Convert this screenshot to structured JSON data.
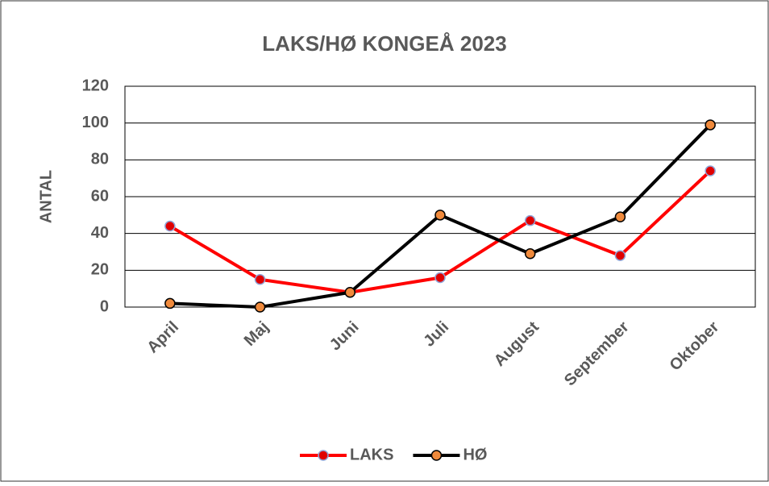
{
  "chart_data": {
    "type": "line",
    "title": "LAKS/HØ KONGEÅ 2023",
    "y_label": "ANTAL",
    "categories": [
      "April",
      "Maj",
      "Juni",
      "Juli",
      "August",
      "September",
      "Oktober"
    ],
    "series": [
      {
        "name": "LAKS",
        "color": "#ff0000",
        "marker_color": "#e00000",
        "marker_edge": "#8fa3d6",
        "values": [
          44,
          15,
          8,
          16,
          47,
          28,
          74
        ]
      },
      {
        "name": "HØ",
        "color": "#000000",
        "marker_color": "#f08a3c",
        "marker_edge": "#000000",
        "values": [
          2,
          0,
          8,
          50,
          29,
          49,
          99
        ]
      }
    ],
    "ylim": [
      0,
      120
    ],
    "yticks": [
      0,
      20,
      40,
      60,
      80,
      100,
      120
    ],
    "grid": true,
    "legend": "bottom"
  }
}
